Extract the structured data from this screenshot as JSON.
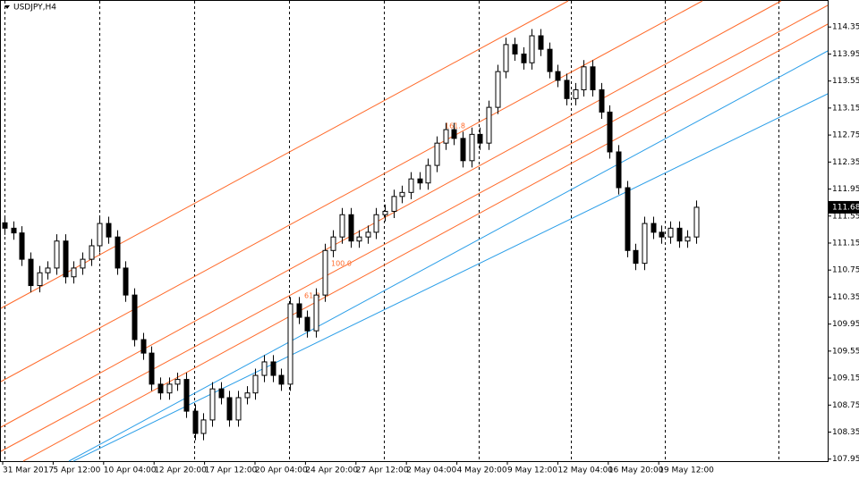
{
  "chart_data": {
    "type": "candlestick",
    "title": "USDJPY,H4",
    "ylim": [
      107.92,
      114.75
    ],
    "yticks": [
      114.35,
      113.95,
      113.55,
      113.15,
      112.75,
      112.35,
      111.95,
      111.55,
      111.15,
      110.75,
      110.35,
      109.95,
      109.55,
      109.15,
      108.75,
      108.35,
      107.95
    ],
    "current_price": 111.68,
    "xtick_labels": [
      "31 Mar 2017",
      "5 Apr 12:00",
      "10 Apr 04:00",
      "12 Apr 20:00",
      "17 Apr 12:00",
      "20 Apr 04:00",
      "24 Apr 20:00",
      "27 Apr 12:00",
      "2 May 04:00",
      "4 May 20:00",
      "9 May 12:00",
      "12 May 04:00",
      "16 May 20:00",
      "19 May 12:00"
    ],
    "channel_levels": [
      "161.8",
      "100.0",
      "61.8"
    ],
    "up_color": "#ffffff",
    "down_color": "#000000",
    "open": [
      111.45,
      111.37,
      111.3,
      110.91,
      110.52,
      110.71,
      110.78,
      111.18,
      110.65,
      110.78,
      110.91,
      111.11,
      111.44,
      111.24,
      110.78,
      110.38,
      109.72,
      109.52,
      109.06,
      108.93,
      109.06,
      109.13,
      108.66,
      108.33,
      108.53,
      108.99,
      108.86,
      108.53,
      108.86,
      108.93,
      109.19,
      109.39,
      109.19,
      109.06,
      110.25,
      110.05,
      109.85,
      110.38,
      111.04,
      111.24,
      111.57,
      111.18,
      111.24,
      111.31,
      111.57,
      111.62,
      111.84,
      111.9,
      112.1,
      112.04,
      112.3,
      112.63,
      112.83,
      112.7,
      112.37,
      112.76,
      112.63,
      113.16,
      113.69,
      114.09,
      113.95,
      113.82,
      114.22,
      114.02,
      113.69,
      113.56,
      113.29,
      113.42,
      113.76,
      113.42,
      113.09,
      112.5,
      111.97,
      111.04,
      110.85,
      111.44,
      111.31,
      111.24,
      111.37,
      111.18,
      111.24
    ],
    "high": [
      111.55,
      111.47,
      111.4,
      111.01,
      110.81,
      110.88,
      111.28,
      111.28,
      110.88,
      111.01,
      111.21,
      111.54,
      111.54,
      111.34,
      110.88,
      110.48,
      109.82,
      109.62,
      109.16,
      109.16,
      109.23,
      109.23,
      108.76,
      108.63,
      109.09,
      109.09,
      108.96,
      108.96,
      109.03,
      109.29,
      109.49,
      109.49,
      109.29,
      110.35,
      110.35,
      110.15,
      110.48,
      111.14,
      111.34,
      111.67,
      111.67,
      111.34,
      111.41,
      111.67,
      111.72,
      111.94,
      112.0,
      112.2,
      112.2,
      112.4,
      112.73,
      112.93,
      112.93,
      112.8,
      112.86,
      112.86,
      113.26,
      113.79,
      114.19,
      114.19,
      114.05,
      114.32,
      114.32,
      114.12,
      113.79,
      113.66,
      113.52,
      113.86,
      113.86,
      113.52,
      113.19,
      112.6,
      112.07,
      111.14,
      111.54,
      111.54,
      111.41,
      111.47,
      111.47,
      111.34,
      111.78
    ],
    "low": [
      111.27,
      111.2,
      110.81,
      110.42,
      110.42,
      110.61,
      110.68,
      110.55,
      110.55,
      110.68,
      110.81,
      111.01,
      111.14,
      110.68,
      110.28,
      109.62,
      109.42,
      108.96,
      108.83,
      108.83,
      108.96,
      108.56,
      108.23,
      108.23,
      108.43,
      108.76,
      108.43,
      108.43,
      108.76,
      108.83,
      109.09,
      109.09,
      108.96,
      108.96,
      109.95,
      109.75,
      109.75,
      110.28,
      110.94,
      111.14,
      111.08,
      111.08,
      111.14,
      111.21,
      111.47,
      111.52,
      111.74,
      111.8,
      111.94,
      111.94,
      112.2,
      112.53,
      112.6,
      112.27,
      112.27,
      112.53,
      112.53,
      113.06,
      113.59,
      113.85,
      113.72,
      113.72,
      113.92,
      113.59,
      113.46,
      113.19,
      113.19,
      113.32,
      113.32,
      112.99,
      112.4,
      111.87,
      110.94,
      110.75,
      110.75,
      111.21,
      111.14,
      111.14,
      111.08,
      111.08,
      111.14
    ],
    "close": [
      111.37,
      111.3,
      110.91,
      110.52,
      110.71,
      110.78,
      111.18,
      110.65,
      110.78,
      110.91,
      111.11,
      111.44,
      111.24,
      110.78,
      110.38,
      109.72,
      109.52,
      109.06,
      108.93,
      109.06,
      109.13,
      108.66,
      108.33,
      108.53,
      108.99,
      108.86,
      108.53,
      108.86,
      108.93,
      109.19,
      109.39,
      109.19,
      109.06,
      110.25,
      110.05,
      109.85,
      110.38,
      111.04,
      111.24,
      111.57,
      111.18,
      111.24,
      111.31,
      111.57,
      111.62,
      111.84,
      111.9,
      112.1,
      112.04,
      112.3,
      112.63,
      112.83,
      112.7,
      112.37,
      112.76,
      112.63,
      113.16,
      113.69,
      114.09,
      113.95,
      113.82,
      114.22,
      114.02,
      113.69,
      113.56,
      113.29,
      113.42,
      113.76,
      113.42,
      113.09,
      112.5,
      111.97,
      111.04,
      110.85,
      111.44,
      111.31,
      111.24,
      111.37,
      111.18,
      111.24,
      111.68
    ]
  }
}
